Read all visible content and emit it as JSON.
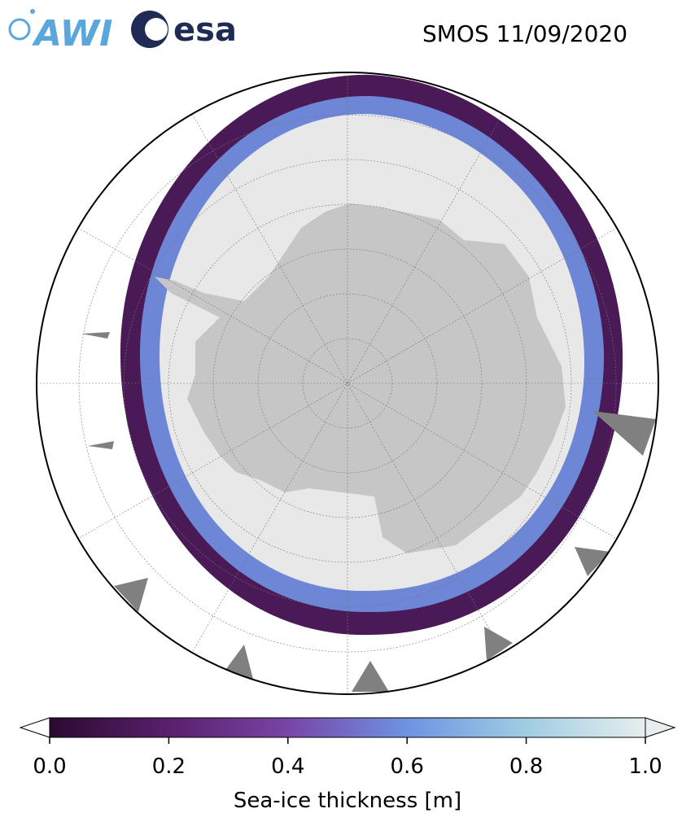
{
  "header": {
    "logos": [
      "AWI",
      "esa"
    ],
    "title": "SMOS 11/09/2020"
  },
  "colorbar": {
    "label": "Sea-ice thickness [m]",
    "range": [
      0,
      1
    ],
    "ticks": [
      {
        "value": 0,
        "label": "0.0"
      },
      {
        "value": 0.2,
        "label": "0.2"
      },
      {
        "value": 0.4,
        "label": "0.4"
      },
      {
        "value": 0.6,
        "label": "0.6"
      },
      {
        "value": 0.8,
        "label": "0.8"
      },
      {
        "value": 1,
        "label": "1.0"
      }
    ]
  }
}
